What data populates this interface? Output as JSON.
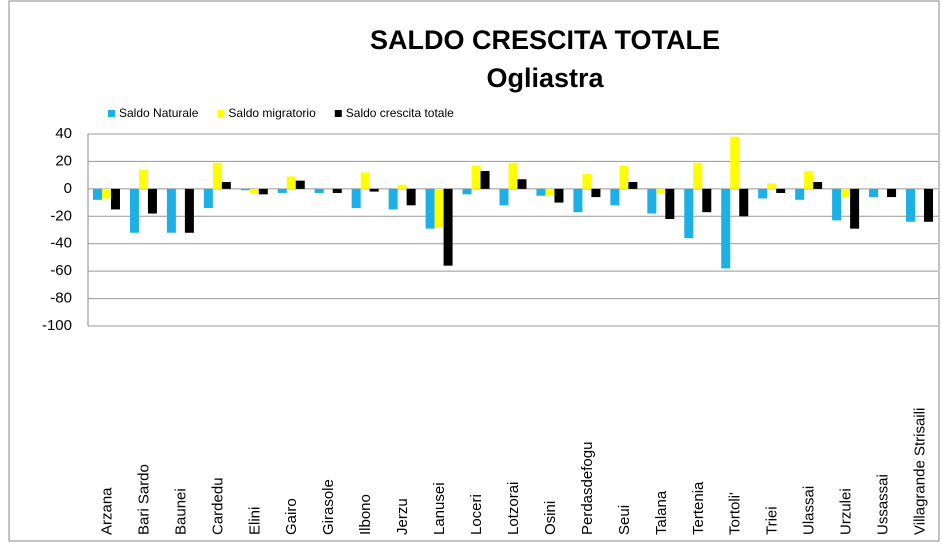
{
  "chart_data": {
    "type": "bar",
    "title": "SALDO CRESCITA TOTALE",
    "subtitle": "Ogliastra",
    "categories": [
      "Arzana",
      "Bari Sardo",
      "Baunei",
      "Cardedu",
      "Elini",
      "Gairo",
      "Girasole",
      "Ilbono",
      "Jerzu",
      "Lanusei",
      "Loceri",
      "Lotzorai",
      "Osini",
      "Perdasdefogu",
      "Seui",
      "Talana",
      "Tertenia",
      "Tortoli'",
      "Triei",
      "Ulassai",
      "Urzulei",
      "Ussassai",
      "Villagrande Strisaili"
    ],
    "series": [
      {
        "name": "Saldo Naturale",
        "color": "#1cb0e6",
        "values": [
          -8,
          -32,
          -32,
          -14,
          -1,
          -3,
          -3,
          -14,
          -15,
          -29,
          -4,
          -12,
          -5,
          -17,
          -12,
          -18,
          -36,
          -58,
          -7,
          -8,
          -23,
          -6,
          -24
        ]
      },
      {
        "name": "Saldo migratorio",
        "color": "#ffff00",
        "values": [
          -7,
          14,
          0,
          19,
          -3,
          9,
          0,
          12,
          3,
          -28,
          17,
          19,
          -5,
          11,
          17,
          -3,
          19,
          38,
          4,
          13,
          -6,
          0,
          0
        ]
      },
      {
        "name": "Saldo crescita totale",
        "color": "#000000",
        "values": [
          -15,
          -18,
          -32,
          5,
          -4,
          6,
          -3,
          -2,
          -12,
          -56,
          13,
          7,
          -10,
          -6,
          5,
          -22,
          -17,
          -20,
          -3,
          5,
          -29,
          -6,
          -24
        ]
      }
    ],
    "ylim": [
      -100,
      40
    ],
    "yticks": [
      -100,
      -80,
      -60,
      -40,
      -20,
      0,
      20,
      40
    ],
    "grid": true,
    "legend": "top"
  }
}
